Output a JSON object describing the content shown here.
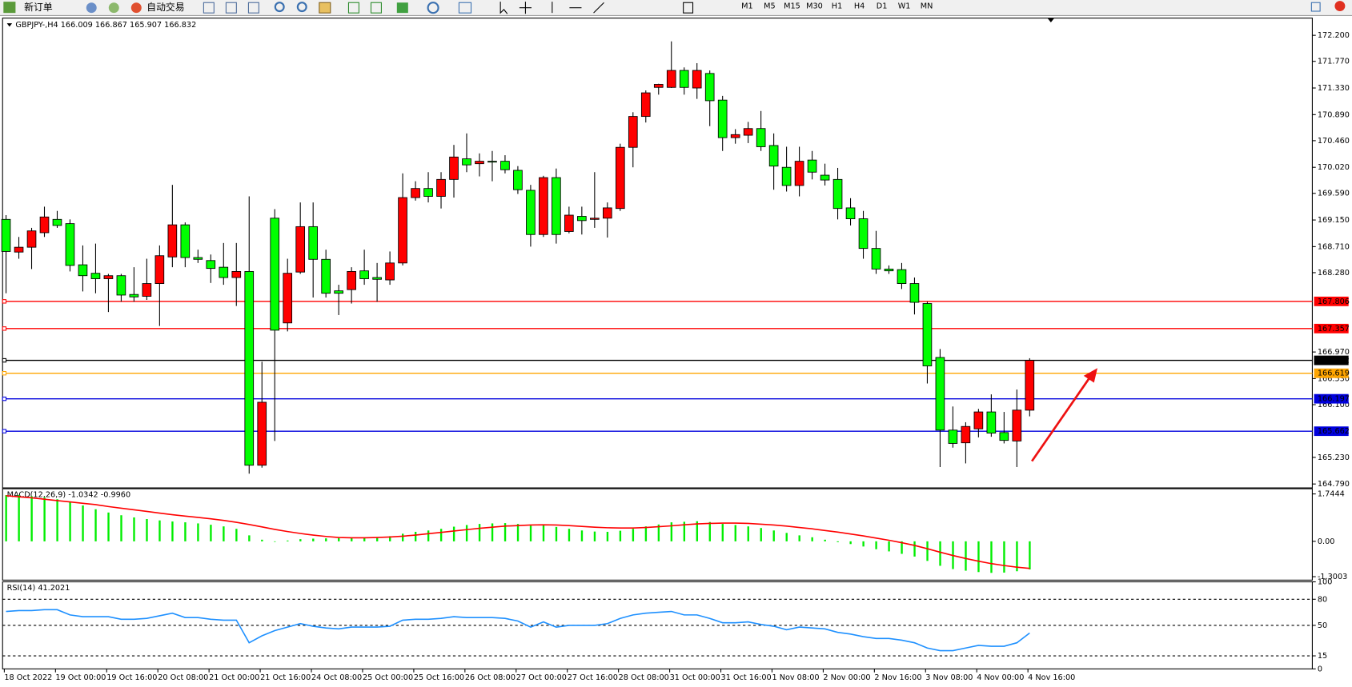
{
  "toolbar": {
    "new_order": "新订单",
    "auto_trading": "自动交易",
    "timeframes": [
      "M1",
      "M5",
      "M15",
      "M30",
      "H1",
      "H4",
      "D1",
      "W1",
      "MN"
    ]
  },
  "chart_data": [
    {
      "type": "candlestick",
      "title": "GBPJPY-,H4  166.009 166.867 165.907 166.832",
      "up_color": "#ff0000",
      "down_color": "#00ff00",
      "categories": [
        "18 Oct 2022",
        null,
        null,
        null,
        "19 Oct 00:00",
        null,
        null,
        null,
        "19 Oct 16:00",
        null,
        null,
        null,
        "20 Oct 08:00",
        null,
        null,
        null,
        "21 Oct 00:00",
        null,
        null,
        null,
        "21 Oct 16:00",
        null,
        null,
        null,
        "24 Oct 08:00",
        null,
        null,
        null,
        "25 Oct 00:00",
        null,
        null,
        null,
        "25 Oct 16:00",
        null,
        null,
        null,
        "26 Oct 08:00",
        null,
        null,
        null,
        "27 Oct 00:00",
        null,
        null,
        null,
        "27 Oct 16:00",
        null,
        null,
        null,
        "28 Oct 08:00",
        null,
        null,
        null,
        "31 Oct 00:00",
        null,
        null,
        null,
        "31 Oct 16:00",
        null,
        null,
        null,
        "1 Nov 08:00",
        null,
        null,
        null,
        "2 Nov 00:00",
        null,
        null,
        null,
        "2 Nov 16:00",
        null,
        null,
        null,
        "3 Nov 08:00",
        null,
        null,
        null,
        "4 Nov 00:00",
        null,
        null,
        null,
        "4 Nov 16:00"
      ],
      "candles": [
        [
          169.16,
          169.23,
          167.94,
          168.63
        ],
        [
          168.62,
          168.87,
          168.51,
          168.7
        ],
        [
          168.7,
          169.02,
          168.34,
          168.97
        ],
        [
          168.94,
          169.37,
          168.87,
          169.2
        ],
        [
          169.16,
          169.3,
          169.02,
          169.06
        ],
        [
          169.09,
          169.16,
          168.3,
          168.4
        ],
        [
          168.41,
          168.73,
          167.97,
          168.23
        ],
        [
          168.27,
          168.76,
          167.94,
          168.18
        ],
        [
          168.18,
          168.26,
          167.63,
          168.23
        ],
        [
          168.23,
          168.26,
          167.8,
          167.91
        ],
        [
          167.92,
          168.37,
          167.8,
          167.88
        ],
        [
          167.89,
          168.51,
          167.83,
          168.1
        ],
        [
          168.1,
          168.73,
          167.4,
          168.56
        ],
        [
          168.54,
          169.73,
          168.37,
          169.07
        ],
        [
          169.07,
          169.11,
          168.37,
          168.53
        ],
        [
          168.53,
          168.66,
          168.44,
          168.5
        ],
        [
          168.48,
          168.58,
          168.11,
          168.35
        ],
        [
          168.37,
          168.77,
          168.08,
          168.2
        ],
        [
          168.2,
          168.77,
          167.73,
          168.3
        ],
        [
          168.3,
          169.54,
          164.96,
          165.1
        ],
        [
          165.1,
          166.81,
          165.06,
          166.14
        ],
        [
          169.18,
          169.33,
          165.5,
          167.33
        ],
        [
          167.45,
          168.51,
          167.31,
          168.27
        ],
        [
          168.29,
          169.44,
          168.26,
          169.04
        ],
        [
          169.04,
          169.44,
          167.87,
          168.5
        ],
        [
          168.5,
          168.66,
          167.87,
          167.94
        ],
        [
          167.98,
          168.08,
          167.58,
          167.94
        ],
        [
          168.0,
          168.37,
          167.77,
          168.3
        ],
        [
          168.31,
          168.66,
          168.08,
          168.18
        ],
        [
          168.2,
          168.44,
          167.8,
          168.17
        ],
        [
          168.16,
          168.63,
          168.08,
          168.44
        ],
        [
          168.44,
          169.92,
          168.4,
          169.52
        ],
        [
          169.52,
          169.79,
          169.47,
          169.67
        ],
        [
          169.67,
          169.94,
          169.44,
          169.54
        ],
        [
          169.54,
          169.94,
          169.34,
          169.82
        ],
        [
          169.82,
          170.39,
          169.52,
          170.19
        ],
        [
          170.16,
          170.58,
          169.94,
          170.06
        ],
        [
          170.08,
          170.25,
          169.87,
          170.12
        ],
        [
          170.12,
          170.29,
          169.79,
          170.11
        ],
        [
          170.12,
          170.22,
          169.92,
          169.98
        ],
        [
          169.97,
          170.04,
          169.58,
          169.65
        ],
        [
          169.64,
          169.73,
          168.71,
          168.91
        ],
        [
          168.91,
          169.88,
          168.87,
          169.85
        ],
        [
          169.85,
          170.0,
          168.76,
          168.91
        ],
        [
          168.96,
          169.37,
          168.93,
          169.23
        ],
        [
          169.21,
          169.37,
          168.91,
          169.14
        ],
        [
          169.16,
          169.94,
          169.02,
          169.18
        ],
        [
          169.18,
          169.44,
          168.86,
          169.35
        ],
        [
          169.34,
          170.41,
          169.3,
          170.35
        ],
        [
          170.35,
          170.93,
          170.02,
          170.86
        ],
        [
          170.86,
          171.29,
          170.76,
          171.25
        ],
        [
          171.34,
          171.4,
          171.22,
          171.39
        ],
        [
          171.34,
          172.1,
          171.33,
          171.62
        ],
        [
          171.62,
          171.67,
          171.22,
          171.34
        ],
        [
          171.33,
          171.74,
          171.15,
          171.62
        ],
        [
          171.57,
          171.62,
          170.7,
          171.12
        ],
        [
          171.13,
          171.2,
          170.29,
          170.51
        ],
        [
          170.51,
          170.65,
          170.41,
          170.56
        ],
        [
          170.55,
          170.77,
          170.42,
          170.66
        ],
        [
          170.66,
          170.95,
          170.29,
          170.36
        ],
        [
          170.38,
          170.58,
          169.65,
          170.04
        ],
        [
          170.02,
          170.36,
          169.62,
          169.72
        ],
        [
          169.72,
          170.36,
          169.54,
          170.12
        ],
        [
          170.14,
          170.29,
          169.82,
          169.94
        ],
        [
          169.89,
          170.08,
          169.72,
          169.81
        ],
        [
          169.82,
          170.01,
          169.16,
          169.34
        ],
        [
          169.35,
          169.51,
          169.06,
          169.17
        ],
        [
          169.17,
          169.3,
          168.51,
          168.68
        ],
        [
          168.68,
          168.97,
          168.26,
          168.34
        ],
        [
          168.34,
          168.4,
          168.26,
          168.31
        ],
        [
          168.33,
          168.44,
          168.01,
          168.1
        ],
        [
          168.1,
          168.2,
          167.59,
          167.79
        ],
        [
          167.77,
          167.8,
          166.45,
          166.74
        ],
        [
          166.88,
          167.02,
          165.07,
          165.68
        ],
        [
          165.68,
          166.07,
          165.39,
          165.46
        ],
        [
          165.47,
          165.81,
          165.13,
          165.74
        ],
        [
          165.7,
          166.03,
          165.56,
          165.98
        ],
        [
          165.98,
          166.27,
          165.57,
          165.63
        ],
        [
          165.64,
          165.98,
          165.46,
          165.51
        ],
        [
          165.5,
          166.35,
          165.07,
          166.01
        ],
        [
          166.009,
          166.867,
          165.907,
          166.832
        ]
      ],
      "ylim": [
        164.74,
        172.47
      ],
      "yticks": [
        {
          "value": 172.2,
          "label": "172.200"
        },
        {
          "value": 171.77,
          "label": "171.770"
        },
        {
          "value": 171.33,
          "label": "171.330"
        },
        {
          "value": 170.89,
          "label": "170.890"
        },
        {
          "value": 170.46,
          "label": "170.460"
        },
        {
          "value": 170.02,
          "label": "170.020"
        },
        {
          "value": 169.59,
          "label": "169.590"
        },
        {
          "value": 169.15,
          "label": "169.150"
        },
        {
          "value": 168.71,
          "label": "168.710"
        },
        {
          "value": 168.28,
          "label": "168.280"
        },
        {
          "value": 166.97,
          "label": "166.970"
        },
        {
          "value": 166.53,
          "label": "166.530"
        },
        {
          "value": 166.1,
          "label": "166.100"
        },
        {
          "value": 165.23,
          "label": "165.230"
        },
        {
          "value": 164.79,
          "label": "164.790"
        }
      ],
      "hlines": [
        {
          "value": 167.806,
          "color": "#ff0000"
        },
        {
          "value": 167.357,
          "color": "#ff0000"
        },
        {
          "value": 166.832,
          "color": "#000000"
        },
        {
          "value": 166.619,
          "color": "#ffa500"
        },
        {
          "value": 166.197,
          "color": "#0000dd"
        },
        {
          "value": 165.662,
          "color": "#0000dd"
        }
      ]
    },
    {
      "type": "macd",
      "title": "MACD(12,26,9) -1.0342 -0.9960",
      "histogram": {
        "color": "#00ee00",
        "values": [
          1.7,
          1.7,
          1.66,
          1.62,
          1.55,
          1.45,
          1.32,
          1.18,
          1.06,
          0.96,
          0.88,
          0.82,
          0.77,
          0.73,
          0.7,
          0.66,
          0.61,
          0.55,
          0.46,
          0.22,
          0.06,
          -0.02,
          0.03,
          0.08,
          0.1,
          0.11,
          0.12,
          0.14,
          0.13,
          0.15,
          0.19,
          0.28,
          0.35,
          0.4,
          0.46,
          0.54,
          0.6,
          0.64,
          0.66,
          0.67,
          0.64,
          0.58,
          0.6,
          0.53,
          0.46,
          0.4,
          0.36,
          0.35,
          0.39,
          0.46,
          0.55,
          0.62,
          0.7,
          0.72,
          0.74,
          0.71,
          0.64,
          0.6,
          0.55,
          0.49,
          0.4,
          0.31,
          0.22,
          0.15,
          0.06,
          -0.03,
          -0.1,
          -0.19,
          -0.29,
          -0.37,
          -0.46,
          -0.56,
          -0.72,
          -0.9,
          -1.02,
          -1.08,
          -1.13,
          -1.16,
          -1.15,
          -1.1,
          -1.0342
        ]
      },
      "signal": {
        "color": "#ff0000",
        "values": [
          1.68,
          1.64,
          1.6,
          1.55,
          1.5,
          1.45,
          1.4,
          1.35,
          1.28,
          1.22,
          1.16,
          1.1,
          1.04,
          0.98,
          0.93,
          0.88,
          0.83,
          0.77,
          0.7,
          0.62,
          0.53,
          0.44,
          0.36,
          0.29,
          0.23,
          0.18,
          0.14,
          0.13,
          0.13,
          0.14,
          0.16,
          0.19,
          0.23,
          0.28,
          0.33,
          0.38,
          0.43,
          0.48,
          0.52,
          0.56,
          0.58,
          0.6,
          0.61,
          0.6,
          0.58,
          0.55,
          0.52,
          0.5,
          0.49,
          0.49,
          0.51,
          0.54,
          0.57,
          0.61,
          0.64,
          0.66,
          0.67,
          0.67,
          0.66,
          0.63,
          0.6,
          0.56,
          0.51,
          0.46,
          0.4,
          0.34,
          0.27,
          0.2,
          0.12,
          0.04,
          -0.05,
          -0.15,
          -0.27,
          -0.4,
          -0.52,
          -0.63,
          -0.73,
          -0.82,
          -0.89,
          -0.95,
          -0.996
        ]
      },
      "ylim": [
        -1.395,
        1.935
      ],
      "yticks": [
        1.7444,
        {
          "value": 0,
          "label": "0.00"
        },
        -1.3003
      ]
    },
    {
      "type": "line",
      "title": "RSI(14) 41.2021",
      "color": "#1e90ff",
      "values": [
        66,
        67,
        67,
        68,
        68,
        62,
        60,
        60,
        60,
        57,
        57,
        58,
        61,
        64,
        59,
        59,
        57,
        56,
        56,
        30,
        38,
        44,
        48,
        52,
        49,
        47,
        46,
        48,
        48,
        48,
        49,
        56,
        57,
        57,
        58,
        60,
        59,
        59,
        59,
        58,
        55,
        48,
        54,
        48,
        50,
        50,
        50,
        52,
        58,
        62,
        64,
        65,
        66,
        62,
        62,
        58,
        53,
        53,
        54,
        51,
        49,
        45,
        48,
        47,
        46,
        42,
        40,
        37,
        35,
        35,
        33,
        30,
        24,
        21,
        21,
        24,
        27,
        26,
        26,
        30,
        41.2021
      ],
      "ylim": [
        0,
        100
      ],
      "yticks": [
        0,
        15,
        50,
        80,
        100
      ]
    }
  ]
}
